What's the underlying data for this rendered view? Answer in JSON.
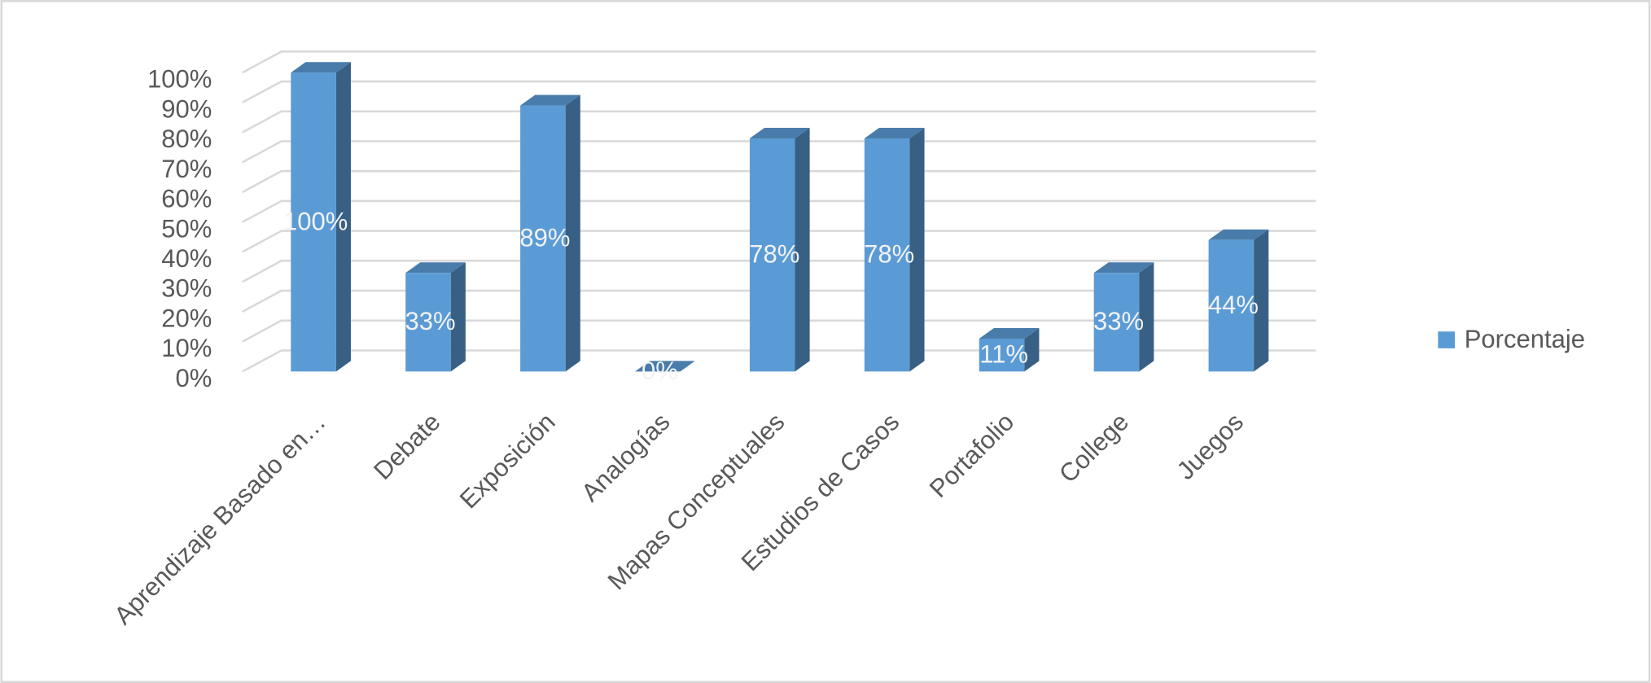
{
  "chart_data": {
    "type": "bar3d",
    "categories": [
      "Aprendizaje Basado en…",
      "Debate",
      "Exposición",
      "Analogías",
      "Mapas Conceptuales",
      "Estudios de Casos",
      "Portafolio",
      "College",
      "Juegos"
    ],
    "series": [
      {
        "name": "Porcentaje",
        "color": "#5b9bd5",
        "values": [
          100,
          33,
          89,
          0,
          78,
          78,
          11,
          33,
          44
        ],
        "value_labels": [
          "100%",
          "33%",
          "89%",
          "0%",
          "78%",
          "78%",
          "11%",
          "33%",
          "44%"
        ]
      }
    ],
    "ylim": [
      0,
      100
    ],
    "yticks": [
      {
        "value": 0,
        "label": "0%"
      },
      {
        "value": 10,
        "label": "10%"
      },
      {
        "value": 20,
        "label": "20%"
      },
      {
        "value": 30,
        "label": "30%"
      },
      {
        "value": 40,
        "label": "40%"
      },
      {
        "value": 50,
        "label": "50%"
      },
      {
        "value": 60,
        "label": "60%"
      },
      {
        "value": 70,
        "label": "70%"
      },
      {
        "value": 80,
        "label": "80%"
      },
      {
        "value": 90,
        "label": "90%"
      },
      {
        "value": 100,
        "label": "100%"
      }
    ],
    "grid": true,
    "legend": "right"
  }
}
